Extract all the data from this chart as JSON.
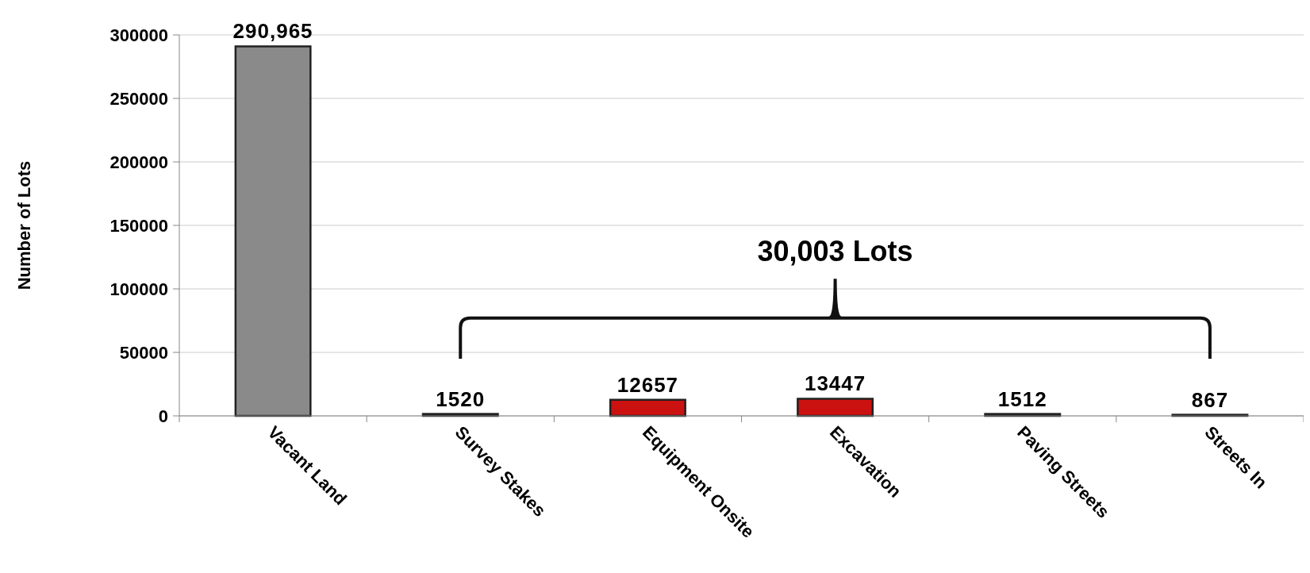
{
  "chart_data": {
    "type": "bar",
    "ylabel": "Number of Lots",
    "categories": [
      "Vacant Land",
      "Survey Stakes",
      "Equipment Onsite",
      "Excavation",
      "Paving Streets",
      "Streets In"
    ],
    "values": [
      290965,
      1520,
      12657,
      13447,
      1512,
      867
    ],
    "colors": [
      "#8a8a8a",
      "#cc1111",
      "#cc1111",
      "#cc1111",
      "#cc1111",
      "#cc1111"
    ],
    "value_labels": [
      "290,965",
      "1520",
      "12657",
      "13447",
      "1512",
      "867"
    ],
    "ylim": [
      0,
      300000
    ],
    "yticks": [
      0,
      50000,
      100000,
      150000,
      200000,
      250000,
      300000
    ],
    "grid": "y",
    "annotations": [
      "30,003 Lots"
    ]
  }
}
